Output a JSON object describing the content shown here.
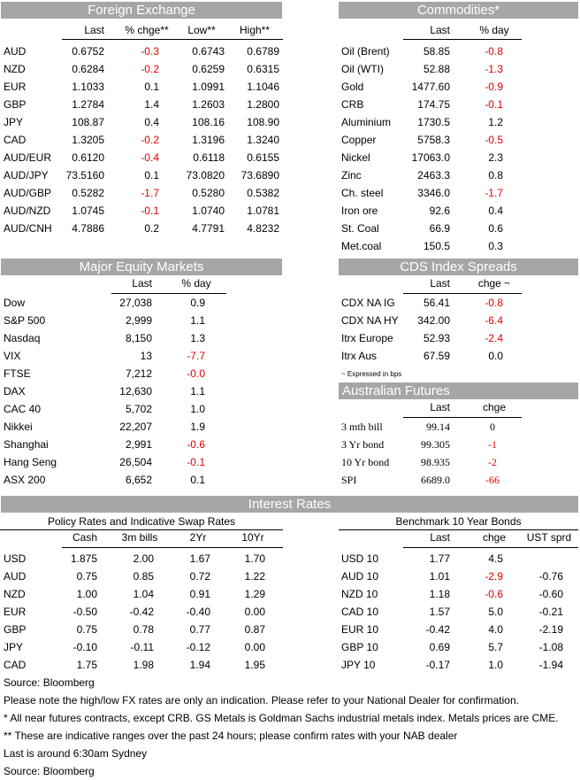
{
  "fx": {
    "title": "Foreign Exchange",
    "headers": [
      "Last",
      "% chge**",
      "Low**",
      "High**"
    ],
    "rows": [
      {
        "name": "AUD",
        "last": "0.6752",
        "chg": "-0.3",
        "low": "0.6743",
        "high": "0.6789"
      },
      {
        "name": "NZD",
        "last": "0.6284",
        "chg": "-0.2",
        "low": "0.6259",
        "high": "0.6315"
      },
      {
        "name": "EUR",
        "last": "1.1033",
        "chg": "0.1",
        "low": "1.0991",
        "high": "1.1046"
      },
      {
        "name": "GBP",
        "last": "1.2784",
        "chg": "1.4",
        "low": "1.2603",
        "high": "1.2800"
      },
      {
        "name": "JPY",
        "last": "108.87",
        "chg": "0.4",
        "low": "108.16",
        "high": "108.90"
      },
      {
        "name": "CAD",
        "last": "1.3205",
        "chg": "-0.2",
        "low": "1.3196",
        "high": "1.3240"
      },
      {
        "name": "AUD/EUR",
        "last": "0.6120",
        "chg": "-0.4",
        "low": "0.6118",
        "high": "0.6155"
      },
      {
        "name": "AUD/JPY",
        "last": "73.5160",
        "chg": "0.1",
        "low": "73.0820",
        "high": "73.6890"
      },
      {
        "name": "AUD/GBP",
        "last": "0.5282",
        "chg": "-1.7",
        "low": "0.5280",
        "high": "0.5382"
      },
      {
        "name": "AUD/NZD",
        "last": "1.0745",
        "chg": "-0.1",
        "low": "1.0740",
        "high": "1.0781"
      },
      {
        "name": "AUD/CNH",
        "last": "4.7886",
        "chg": "0.2",
        "low": "4.7791",
        "high": "4.8232"
      }
    ]
  },
  "commodities": {
    "title": "Commodities*",
    "headers": [
      "Last",
      "% day"
    ],
    "rows": [
      {
        "name": "Oil (Brent)",
        "last": "58.85",
        "chg": "-0.8"
      },
      {
        "name": "Oil (WTI)",
        "last": "52.88",
        "chg": "-1.3"
      },
      {
        "name": "Gold",
        "last": "1477.60",
        "chg": "-0.9"
      },
      {
        "name": "CRB",
        "last": "174.75",
        "chg": "-0.1"
      },
      {
        "name": "Aluminium",
        "last": "1730.5",
        "chg": "1.2"
      },
      {
        "name": "Copper",
        "last": "5758.3",
        "chg": "-0.5"
      },
      {
        "name": "Nickel",
        "last": "17063.0",
        "chg": "2.3"
      },
      {
        "name": "Zinc",
        "last": "2463.3",
        "chg": "0.8"
      },
      {
        "name": "Ch. steel",
        "last": "3346.0",
        "chg": "-1.7"
      },
      {
        "name": "Iron ore",
        "last": "92.6",
        "chg": "0.4"
      },
      {
        "name": "St. Coal",
        "last": "66.9",
        "chg": "0.6"
      },
      {
        "name": "Met.coal",
        "last": "150.5",
        "chg": "0.3"
      }
    ]
  },
  "equity": {
    "title": "Major Equity Markets",
    "headers": [
      "Last",
      "% day"
    ],
    "rows": [
      {
        "name": "Dow",
        "last": "27,038",
        "chg": "0.9"
      },
      {
        "name": "S&P 500",
        "last": "2,999",
        "chg": "1.1"
      },
      {
        "name": "Nasdaq",
        "last": "8,150",
        "chg": "1.3"
      },
      {
        "name": "VIX",
        "last": "13",
        "chg": "-7.7"
      },
      {
        "name": "FTSE",
        "last": "7,212",
        "chg": "-0.0"
      },
      {
        "name": "DAX",
        "last": "12,630",
        "chg": "1.1"
      },
      {
        "name": "CAC 40",
        "last": "5,702",
        "chg": "1.0"
      },
      {
        "name": "Nikkei",
        "last": "22,207",
        "chg": "1.9"
      },
      {
        "name": "Shanghai",
        "last": "2,991",
        "chg": "-0.6"
      },
      {
        "name": "Hang Seng",
        "last": "26,504",
        "chg": "-0.1"
      },
      {
        "name": "ASX 200",
        "last": "6,652",
        "chg": "0.1"
      }
    ]
  },
  "cds": {
    "title": "CDS Index Spreads",
    "headers": [
      "Last",
      "chge ~"
    ],
    "rows": [
      {
        "name": "CDX NA IG",
        "last": "56.41",
        "chg": "-0.8"
      },
      {
        "name": "CDX NA HY",
        "last": "342.00",
        "chg": "-6.4"
      },
      {
        "name": "Itrx Europe",
        "last": "52.93",
        "chg": "-2.4"
      },
      {
        "name": "Itrx Aus",
        "last": "67.59",
        "chg": "0.0"
      }
    ],
    "note": "~ Expressed in bps"
  },
  "futures": {
    "title": "Australian Futures",
    "headers": [
      "Last",
      "chge"
    ],
    "rows": [
      {
        "name": "3 mth bill",
        "last": "99.14",
        "chg": "0"
      },
      {
        "name": "3 Yr bond",
        "last": "99.305",
        "chg": "-1"
      },
      {
        "name": "10 Yr bond",
        "last": "98.935",
        "chg": "-2"
      },
      {
        "name": "SPI",
        "last": "6689.0",
        "chg": "-66"
      }
    ]
  },
  "rates": {
    "title": "Interest Rates",
    "policy": {
      "subtitle": "Policy Rates and Indicative Swap Rates",
      "headers": [
        "Cash",
        "3m bills",
        "2Yr",
        "10Yr"
      ],
      "rows": [
        {
          "name": "USD",
          "cash": "1.875",
          "bills": "2.00",
          "y2": "1.67",
          "y10": "1.70"
        },
        {
          "name": "AUD",
          "cash": "0.75",
          "bills": "0.85",
          "y2": "0.72",
          "y10": "1.22"
        },
        {
          "name": "NZD",
          "cash": "1.00",
          "bills": "1.04",
          "y2": "0.91",
          "y10": "1.29"
        },
        {
          "name": "EUR",
          "cash": "-0.50",
          "bills": "-0.42",
          "y2": "-0.40",
          "y10": "0.00"
        },
        {
          "name": "GBP",
          "cash": "0.75",
          "bills": "0.78",
          "y2": "0.77",
          "y10": "0.87"
        },
        {
          "name": "JPY",
          "cash": "-0.10",
          "bills": "-0.11",
          "y2": "-0.12",
          "y10": "0.00"
        },
        {
          "name": "CAD",
          "cash": "1.75",
          "bills": "1.98",
          "y2": "1.94",
          "y10": "1.95"
        }
      ]
    },
    "bonds": {
      "subtitle": "Benchmark 10 Year Bonds",
      "headers": [
        "Last",
        "chge",
        "UST sprd"
      ],
      "rows": [
        {
          "name": "USD 10",
          "last": "1.77",
          "chg": "4.5",
          "sprd": ""
        },
        {
          "name": "AUD 10",
          "last": "1.01",
          "chg": "-2.9",
          "sprd": "-0.76"
        },
        {
          "name": "NZD 10",
          "last": "1.18",
          "chg": "-0.6",
          "sprd": "-0.60"
        },
        {
          "name": "CAD 10",
          "last": "1.57",
          "chg": "5.0",
          "sprd": "-0.21"
        },
        {
          "name": "EUR 10",
          "last": "-0.42",
          "chg": "4.0",
          "sprd": "-2.19"
        },
        {
          "name": "GBP 10",
          "last": "0.69",
          "chg": "5.7",
          "sprd": "-1.08"
        },
        {
          "name": "JPY 10",
          "last": "-0.17",
          "chg": "1.0",
          "sprd": "-1.94"
        }
      ]
    }
  },
  "footnotes": [
    "Source: Bloomberg",
    "Please note the high/low FX rates are only an indication. Please refer to your National Dealer for confirmation.",
    "* All near futures contracts, except CRB.  GS Metals is Goldman Sachs industrial metals index.  Metals prices are CME.",
    "** These are indicative ranges over the past 24 hours; please confirm rates with your NAB dealer",
    "Last is around 6:30am Sydney",
    "Source: Bloomberg"
  ],
  "colors": {
    "header_bg": "#a6a6a6",
    "negative": "#e00000",
    "text": "#000000"
  }
}
